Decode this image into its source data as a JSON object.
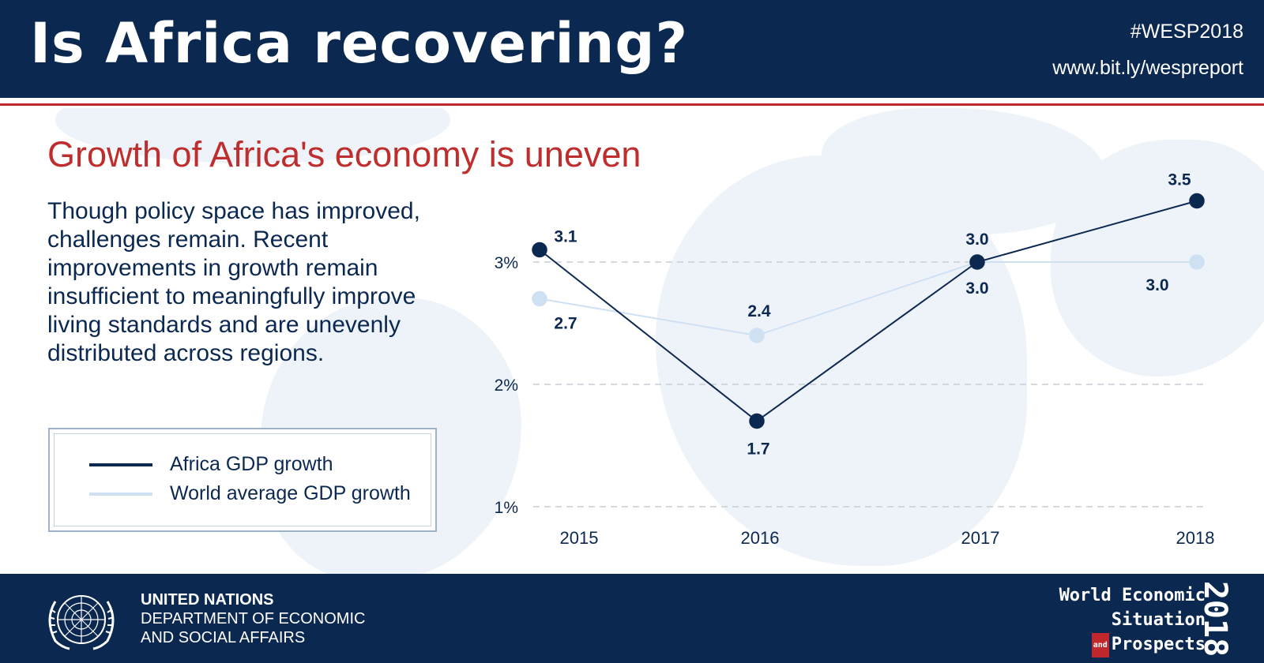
{
  "header": {
    "title": "Is Africa recovering?",
    "hashtag": "#WESP2018",
    "link": "www.bit.ly/wespreport"
  },
  "subtitle": "Growth of Africa's economy is uneven",
  "body_text": "Though policy space has improved, challenges remain. Recent improvements in growth remain insufficient to meaningfully improve living standards and are unevenly distributed across regions.",
  "colors": {
    "navy": "#0b2850",
    "accent_red": "#be2e2e",
    "world_line": "#cfe0f3"
  },
  "chart_data": {
    "type": "line",
    "x": [
      "2015",
      "2016",
      "2017",
      "2018"
    ],
    "y_ticks": [
      "3%",
      "2%",
      "1%"
    ],
    "ylim": [
      1,
      3.5
    ],
    "grid": true,
    "legend_position": "left",
    "series": [
      {
        "name": "Africa GDP growth",
        "values": [
          3.1,
          1.7,
          3.0,
          3.5
        ],
        "labels": [
          "3.1",
          "1.7",
          "3.0",
          "3.5"
        ],
        "color": "#0b2850"
      },
      {
        "name": "World average GDP growth",
        "values": [
          2.7,
          2.4,
          3.0,
          3.0
        ],
        "labels": [
          "2.7",
          "2.4",
          "3.0",
          "3.0"
        ],
        "color": "#cfe0f3"
      }
    ]
  },
  "footer": {
    "org_name": "UNITED NATIONS",
    "dept_line1": "DEPARTMENT OF ECONOMIC",
    "dept_line2": "AND SOCIAL AFFAIRS",
    "report_line1": "World Economic",
    "report_line2": "Situation",
    "report_and": "and",
    "report_line3": "Prospects",
    "report_year": "2018",
    "logo_icon": "un-emblem-icon"
  }
}
